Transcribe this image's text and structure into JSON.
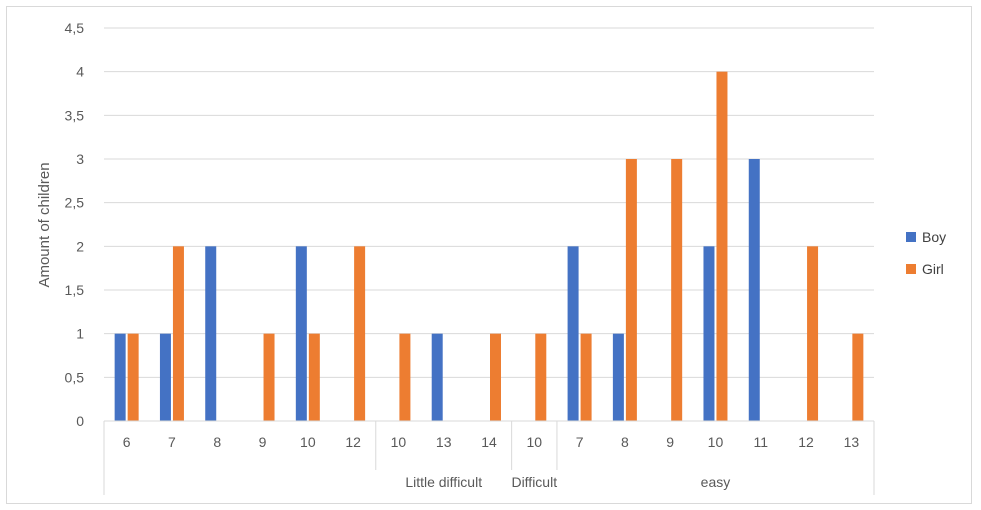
{
  "chart_data": {
    "type": "bar",
    "ylabel": "Amount of children",
    "ylim": [
      0,
      4.5
    ],
    "ytick_step": 0.5,
    "ytick_labels": [
      "0",
      "0,5",
      "1",
      "1,5",
      "2",
      "2,5",
      "3",
      "3,5",
      "4",
      "4,5"
    ],
    "grid": true,
    "legend_position": "right",
    "categories": [
      "6",
      "7",
      "8",
      "9",
      "10",
      "12",
      "10",
      "13",
      "14",
      "10",
      "7",
      "8",
      "9",
      "10",
      "11",
      "12",
      "13"
    ],
    "groups": [
      {
        "label": "",
        "count": 6
      },
      {
        "label": "Little difficult",
        "count": 3
      },
      {
        "label": "Difficult",
        "count": 1
      },
      {
        "label": "easy",
        "count": 7
      }
    ],
    "series": [
      {
        "name": "Boy",
        "color": "#4472c4",
        "values": [
          1,
          1,
          2,
          0,
          2,
          0,
          0,
          1,
          0,
          0,
          2,
          1,
          0,
          2,
          3,
          0,
          0
        ]
      },
      {
        "name": "Girl",
        "color": "#ed7d31",
        "values": [
          1,
          2,
          0,
          1,
          1,
          2,
          1,
          0,
          1,
          1,
          1,
          3,
          3,
          4,
          0,
          2,
          1
        ]
      }
    ]
  }
}
